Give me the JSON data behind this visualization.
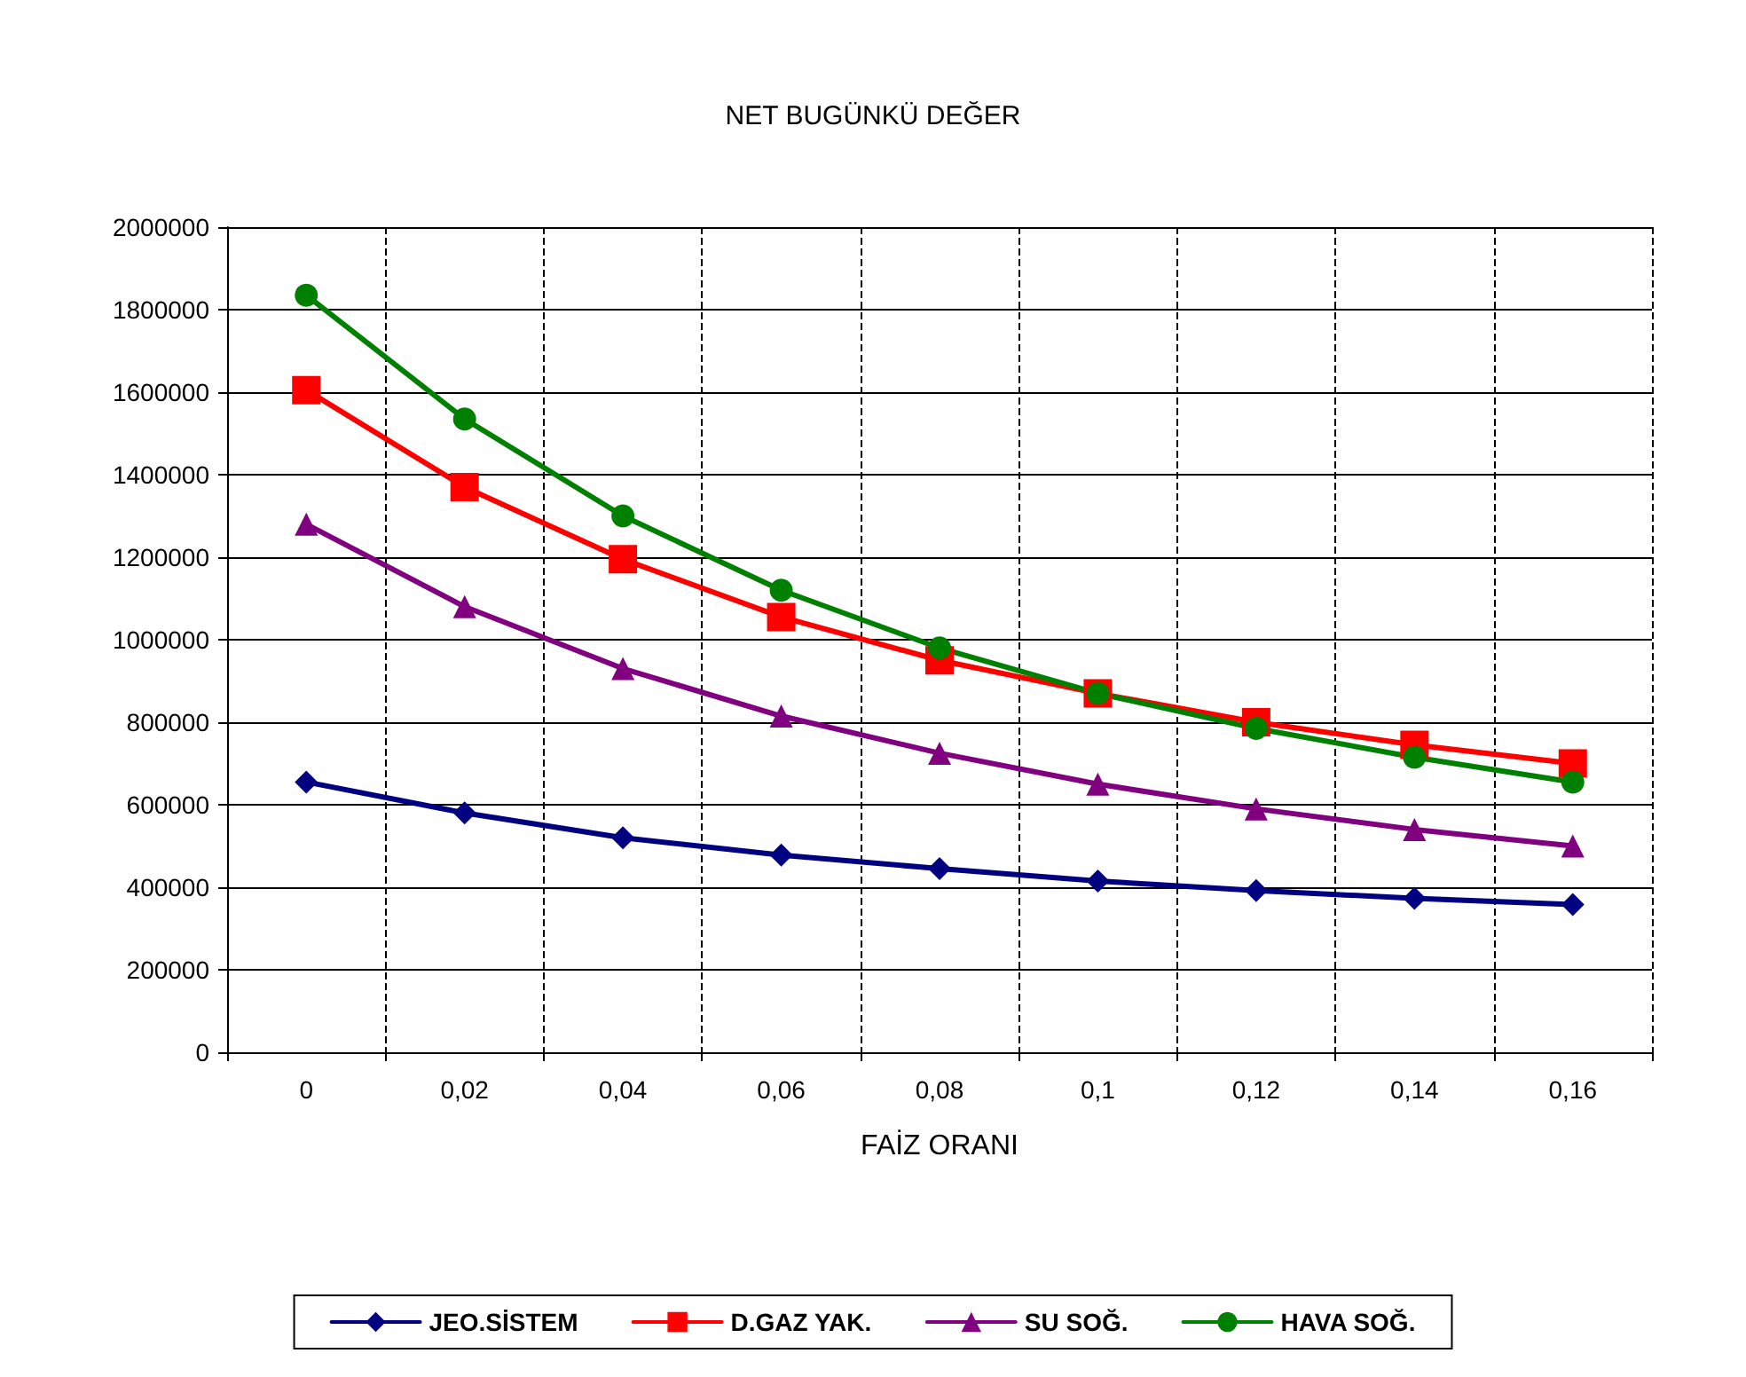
{
  "chart_data": {
    "type": "line",
    "title": "NET BUGÜNKÜ DEĞER",
    "xlabel": "FAİZ ORANI",
    "categories": [
      "0",
      "0,02",
      "0,04",
      "0,06",
      "0,08",
      "0,1",
      "0,12",
      "0,14",
      "0,16"
    ],
    "series": [
      {
        "name": "JEO.SİSTEM",
        "color": "#000080",
        "marker": "diamond",
        "values": [
          655000,
          580000,
          520000,
          478000,
          445000,
          415000,
          392000,
          373000,
          358000
        ]
      },
      {
        "name": "D.GAZ YAK.",
        "color": "#ff0000",
        "marker": "square",
        "values": [
          1605000,
          1370000,
          1195000,
          1055000,
          950000,
          870000,
          800000,
          745000,
          700000
        ]
      },
      {
        "name": "SU SOĞ.",
        "color": "#800080",
        "marker": "triangle",
        "values": [
          1280000,
          1080000,
          930000,
          815000,
          725000,
          650000,
          590000,
          540000,
          500000
        ]
      },
      {
        "name": "HAVA SOĞ.",
        "color": "#008000",
        "marker": "circle",
        "values": [
          1835000,
          1535000,
          1300000,
          1120000,
          980000,
          870000,
          785000,
          715000,
          655000
        ]
      }
    ],
    "ylim": [
      0,
      2000000
    ],
    "yticks": [
      0,
      200000,
      400000,
      600000,
      800000,
      1000000,
      1200000,
      1400000,
      1600000,
      1800000,
      2000000
    ],
    "grid": true,
    "legend": "bottom",
    "line_style": "solid"
  }
}
